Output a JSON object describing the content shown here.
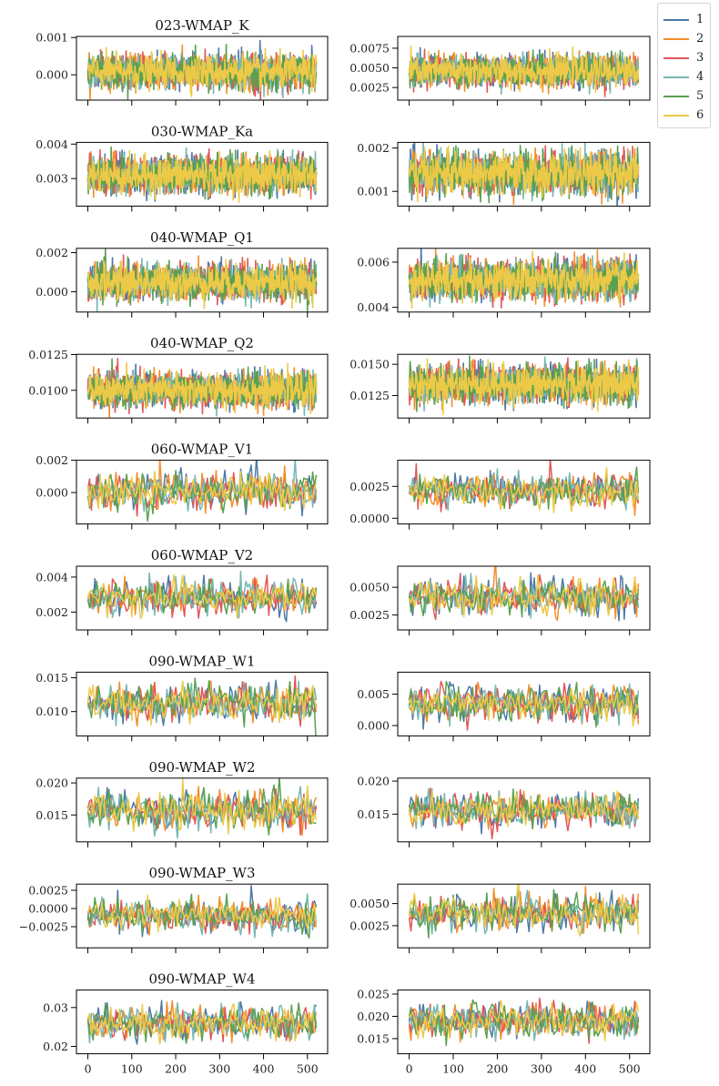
{
  "chart_data": {
    "type": "line",
    "layout": "10x2 grid of small multiples",
    "x_label": "",
    "x_range": [
      -26,
      546
    ],
    "x_ticks": [
      0,
      100,
      200,
      300,
      400,
      500
    ],
    "x_tick_labels": [
      "0",
      "100",
      "200",
      "300",
      "400",
      "500"
    ],
    "grid": false,
    "legend": {
      "placement": "top-right (outside)",
      "entries": [
        "1",
        "2",
        "3",
        "4",
        "5",
        "6"
      ]
    },
    "series_colors": [
      "#4e79a7",
      "#f28e2b",
      "#e15759",
      "#76b7b2",
      "#59a14f",
      "#edc948"
    ],
    "series_names": [
      "1",
      "2",
      "3",
      "4",
      "5",
      "6"
    ],
    "rows": [
      {
        "title": "023-WMAP_K",
        "n_points": 521,
        "left": {
          "ylim": [
            -0.00068,
            0.00103
          ],
          "yticks": [
            0.0,
            0.001
          ],
          "ytick_labels": [
            "0.000",
            "0.001"
          ],
          "mean": 8e-05,
          "spread": 0.00022
        },
        "right": {
          "ylim": [
            0.0009,
            0.009
          ],
          "yticks": [
            0.0025,
            0.005,
            0.0075
          ],
          "ytick_labels": [
            "0.0025",
            "0.0050",
            "0.0075"
          ],
          "mean": 0.0046,
          "spread": 0.00095
        }
      },
      {
        "title": "030-WMAP_Ka",
        "n_points": 521,
        "left": {
          "ylim": [
            0.0022,
            0.00405
          ],
          "yticks": [
            0.003,
            0.004
          ],
          "ytick_labels": [
            "0.003",
            "0.004"
          ],
          "mean": 0.0031,
          "spread": 0.00026
        },
        "right": {
          "ylim": [
            0.00066,
            0.00213
          ],
          "yticks": [
            0.001,
            0.002
          ],
          "ytick_labels": [
            "0.001",
            "0.002"
          ],
          "mean": 0.00141,
          "spread": 0.00023
        }
      },
      {
        "title": "040-WMAP_Q1",
        "n_points": 521,
        "left": {
          "ylim": [
            -0.00104,
            0.00222
          ],
          "yticks": [
            0.0,
            0.002
          ],
          "ytick_labels": [
            "0.000",
            "0.002"
          ],
          "mean": 0.0005,
          "spread": 0.00044
        },
        "right": {
          "ylim": [
            0.00379,
            0.00661
          ],
          "yticks": [
            0.004,
            0.006
          ],
          "ytick_labels": [
            "0.004",
            "0.006"
          ],
          "mean": 0.0052,
          "spread": 0.00042
        }
      },
      {
        "title": "040-WMAP_Q2",
        "n_points": 521,
        "left": {
          "ylim": [
            0.00806,
            0.01252
          ],
          "yticks": [
            0.01,
            0.0125
          ],
          "ytick_labels": [
            "0.0100",
            "0.0125"
          ],
          "mean": 0.01,
          "spread": 0.00058
        },
        "right": {
          "ylim": [
            0.0107,
            0.0158
          ],
          "yticks": [
            0.0125,
            0.015
          ],
          "ytick_labels": [
            "0.0125",
            "0.0150"
          ],
          "mean": 0.0134,
          "spread": 0.00072
        }
      },
      {
        "title": "060-WMAP_V1",
        "n_points": 131,
        "left": {
          "ylim": [
            -0.00195,
            0.002
          ],
          "yticks": [
            0.0,
            0.002
          ],
          "ytick_labels": [
            "0.000",
            "0.002"
          ],
          "mean": 0.0001,
          "spread": 0.00055
        },
        "right": {
          "ylim": [
            -0.00045,
            0.00455
          ],
          "yticks": [
            0.0,
            0.0025
          ],
          "ytick_labels": [
            "0.0000",
            "0.0025"
          ],
          "mean": 0.0022,
          "spread": 0.00065
        }
      },
      {
        "title": "060-WMAP_V2",
        "n_points": 131,
        "left": {
          "ylim": [
            0.00098,
            0.00462
          ],
          "yticks": [
            0.002,
            0.004
          ],
          "ytick_labels": [
            "0.002",
            "0.004"
          ],
          "mean": 0.0028,
          "spread": 0.00048
        },
        "right": {
          "ylim": [
            0.00115,
            0.0069
          ],
          "yticks": [
            0.0025,
            0.005
          ],
          "ytick_labels": [
            "0.0025",
            "0.0050"
          ],
          "mean": 0.0041,
          "spread": 0.00078
        }
      },
      {
        "title": "090-WMAP_W1",
        "n_points": 131,
        "left": {
          "ylim": [
            0.0064,
            0.01583
          ],
          "yticks": [
            0.01,
            0.015
          ],
          "ytick_labels": [
            "0.010",
            "0.015"
          ],
          "mean": 0.0113,
          "spread": 0.00135
        },
        "right": {
          "ylim": [
            -0.00165,
            0.0085
          ],
          "yticks": [
            0.0,
            0.005
          ],
          "ytick_labels": [
            "0.000",
            "0.005"
          ],
          "mean": 0.0035,
          "spread": 0.0014
        }
      },
      {
        "title": "090-WMAP_W2",
        "n_points": 131,
        "left": {
          "ylim": [
            0.0108,
            0.02075
          ],
          "yticks": [
            0.015,
            0.02
          ],
          "ytick_labels": [
            "0.015",
            "0.020"
          ],
          "mean": 0.0156,
          "spread": 0.0014
        },
        "right": {
          "ylim": [
            0.0108,
            0.02045
          ],
          "yticks": [
            0.015,
            0.02
          ],
          "ytick_labels": [
            "0.015",
            "0.020"
          ],
          "mean": 0.0157,
          "spread": 0.0013
        }
      },
      {
        "title": "090-WMAP_W3",
        "n_points": 131,
        "left": {
          "ylim": [
            -0.0054,
            0.00335
          ],
          "yticks": [
            -0.0025,
            0.0,
            0.0025
          ],
          "ytick_labels": [
            "−0.0025",
            "0.0000",
            "0.0025"
          ],
          "mean": -0.001,
          "spread": 0.0011
        },
        "right": {
          "ylim": [
            0.0,
            0.0072
          ],
          "yticks": [
            0.0025,
            0.005
          ],
          "ytick_labels": [
            "0.0025",
            "0.0050"
          ],
          "mean": 0.0039,
          "spread": 0.00095
        }
      },
      {
        "title": "090-WMAP_W4",
        "n_points": 131,
        "left": {
          "ylim": [
            0.0181,
            0.0345
          ],
          "yticks": [
            0.02,
            0.03
          ],
          "ytick_labels": [
            "0.02",
            "0.03"
          ],
          "mean": 0.026,
          "spread": 0.0021
        },
        "right": {
          "ylim": [
            0.0116,
            0.0259
          ],
          "yticks": [
            0.015,
            0.02,
            0.025
          ],
          "ytick_labels": [
            "0.015",
            "0.020",
            "0.025"
          ],
          "mean": 0.019,
          "spread": 0.0019
        }
      }
    ]
  }
}
